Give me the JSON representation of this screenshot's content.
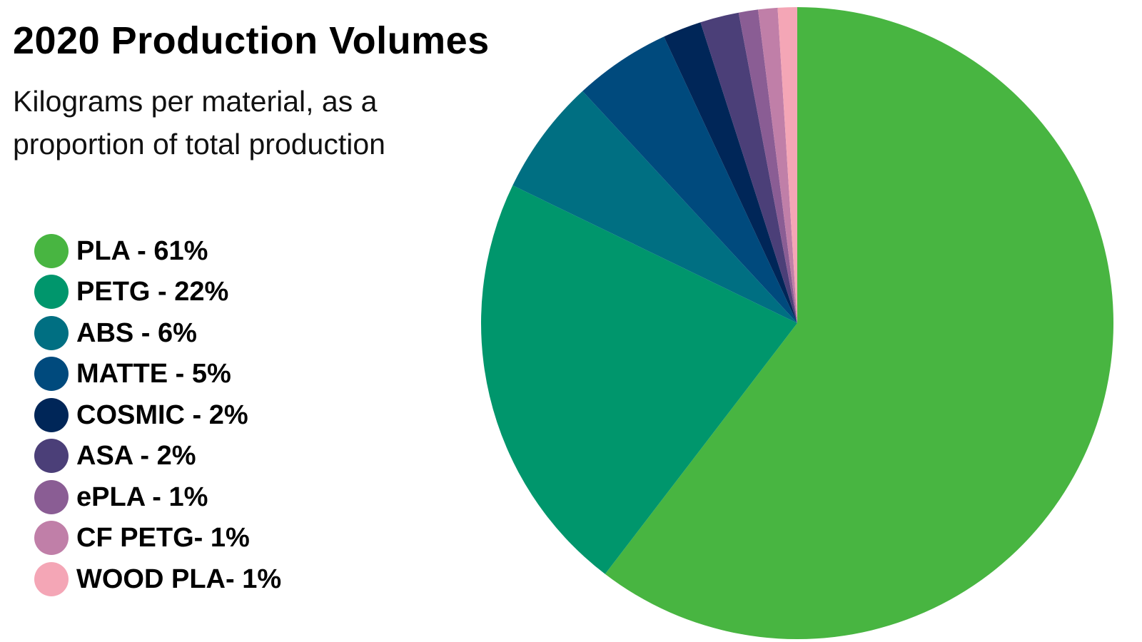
{
  "title": "2020 Production Volumes",
  "subtitle": "Kilograms per material, as a proportion of total production",
  "chart_data": {
    "type": "pie",
    "title": "2020 Production Volumes",
    "subtitle": "Kilograms per material, as a proportion of total production",
    "legend_position": "left",
    "slices": [
      {
        "label": "PLA - 61%",
        "name": "PLA",
        "value": 61,
        "color": "#48b541"
      },
      {
        "label": "PETG - 22%",
        "name": "PETG",
        "value": 22,
        "color": "#00966c"
      },
      {
        "label": "ABS - 6%",
        "name": "ABS",
        "value": 6,
        "color": "#006f82"
      },
      {
        "label": "MATTE - 5%",
        "name": "MATTE",
        "value": 5,
        "color": "#004a7d"
      },
      {
        "label": "COSMIC - 2%",
        "name": "COSMIC",
        "value": 2,
        "color": "#002658"
      },
      {
        "label": "ASA - 2%",
        "name": "ASA",
        "value": 2,
        "color": "#4b3f78"
      },
      {
        "label": "ePLA - 1%",
        "name": "ePLA",
        "value": 1,
        "color": "#8a5d94"
      },
      {
        "label": "CF PETG- 1%",
        "name": "CF PETG",
        "value": 1,
        "color": "#c07fa8"
      },
      {
        "label": "WOOD PLA- 1%",
        "name": "WOOD PLA",
        "value": 1,
        "color": "#f4a6b6"
      }
    ]
  }
}
